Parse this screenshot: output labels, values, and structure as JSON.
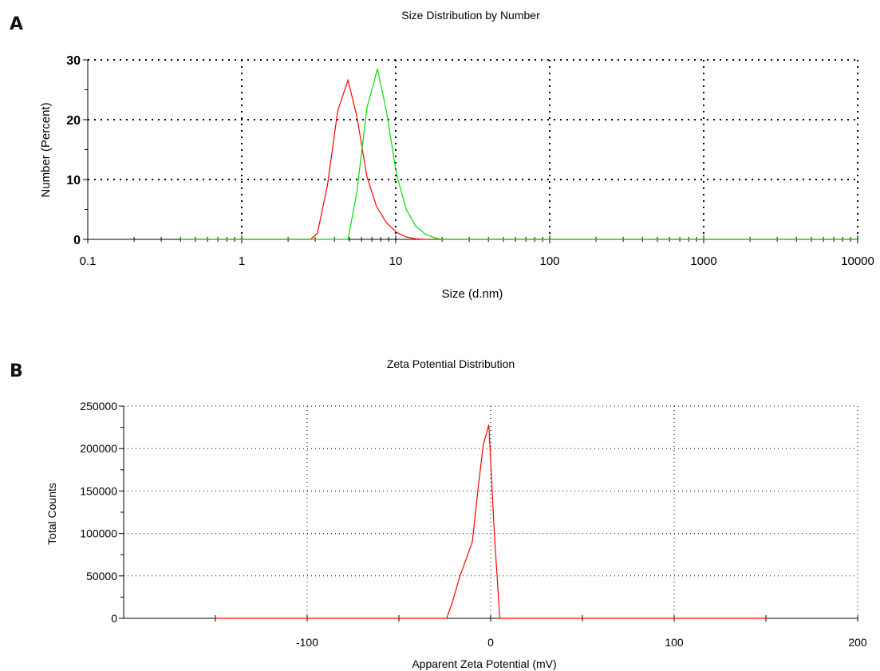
{
  "panels": [
    {
      "letter": "A"
    },
    {
      "letter": "B"
    }
  ],
  "chart_data": [
    {
      "type": "line",
      "title": "Size Distribution by Number",
      "xlabel": "Size (d.nm)",
      "ylabel": "Number (Percent)",
      "xscale": "log",
      "xlim": [
        0.1,
        10000
      ],
      "ylim": [
        0,
        30
      ],
      "xticks": [
        "0.1",
        "1",
        "10",
        "100",
        "1000",
        "10000"
      ],
      "yticks": [
        "0",
        "10",
        "20",
        "30"
      ],
      "grid": true,
      "series": [
        {
          "color": "#ff0000",
          "x": [
            0.4,
            1,
            2,
            2.8,
            3.1,
            3.6,
            4.2,
            4.9,
            5.6,
            6.5,
            7.5,
            8.7,
            10.1,
            11.7,
            13.5,
            15.7,
            20,
            50,
            100,
            1000,
            10000
          ],
          "y": [
            0,
            0,
            0,
            0,
            1,
            9,
            21.5,
            26.6,
            20.5,
            10.5,
            5.5,
            2.8,
            1.2,
            0.4,
            0.1,
            0,
            0,
            0,
            0,
            0,
            0
          ]
        },
        {
          "color": "#00dd00",
          "x": [
            0.4,
            1,
            2,
            4.9,
            5.6,
            6.5,
            7.0,
            7.6,
            8.7,
            10.1,
            11.7,
            13.5,
            15.7,
            18.2,
            20,
            50,
            100,
            1000,
            10000
          ],
          "y": [
            0,
            0,
            0,
            0,
            8,
            22,
            25,
            28.5,
            21.5,
            11,
            5,
            2.2,
            0.8,
            0.2,
            0,
            0,
            0,
            0,
            0
          ]
        }
      ]
    },
    {
      "type": "line",
      "title": "Zeta Potential Distribution",
      "xlabel": "Apparent Zeta Potential (mV)",
      "ylabel": "Total Counts",
      "xlim": [
        -200,
        200
      ],
      "ylim": [
        0,
        250000
      ],
      "xticks": [
        "-100",
        "0",
        "100",
        "200"
      ],
      "yticks": [
        "0",
        "50000",
        "100000",
        "150000",
        "200000",
        "250000"
      ],
      "grid": true,
      "series": [
        {
          "color": "#ff0000",
          "x": [
            -150,
            -100,
            -50,
            -24,
            -21,
            -17,
            -13,
            -10,
            -7,
            -4,
            -1,
            2,
            5,
            50,
            100,
            150
          ],
          "y": [
            0,
            0,
            0,
            0,
            18000,
            48000,
            72000,
            90000,
            150000,
            205000,
            228000,
            100000,
            0,
            0,
            0,
            0
          ]
        }
      ]
    }
  ]
}
